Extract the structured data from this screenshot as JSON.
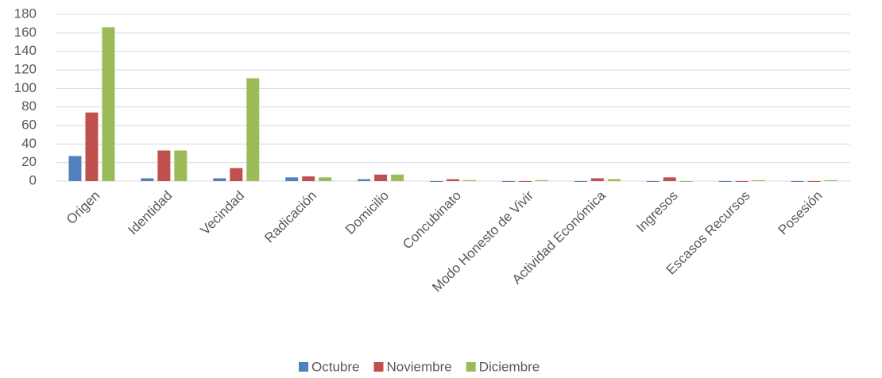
{
  "chart_data": {
    "type": "bar",
    "categories": [
      "Origen",
      "Identidad",
      "Vecindad",
      "Radicación",
      "Domicilio",
      "Concubinato",
      "Modo Honesto de Vivir",
      "Actividad Económica",
      "Ingresos",
      "Escasos Recursos",
      "Posesión"
    ],
    "series": [
      {
        "name": "Octubre",
        "color": "#4f81bd",
        "values": [
          27,
          3,
          3,
          4,
          2,
          0,
          0,
          0,
          0,
          0,
          0
        ]
      },
      {
        "name": "Noviembre",
        "color": "#c0504d",
        "values": [
          74,
          33,
          14,
          5,
          7,
          2,
          0,
          3,
          4,
          0,
          0
        ]
      },
      {
        "name": "Diciembre",
        "color": "#9bbb59",
        "values": [
          166,
          33,
          111,
          4,
          7,
          1,
          1,
          2,
          0,
          1,
          1
        ]
      }
    ],
    "ylim": [
      0,
      180
    ],
    "yticks": [
      0,
      20,
      40,
      60,
      80,
      100,
      120,
      140,
      160,
      180
    ],
    "grid": true,
    "legend": "bottom"
  }
}
